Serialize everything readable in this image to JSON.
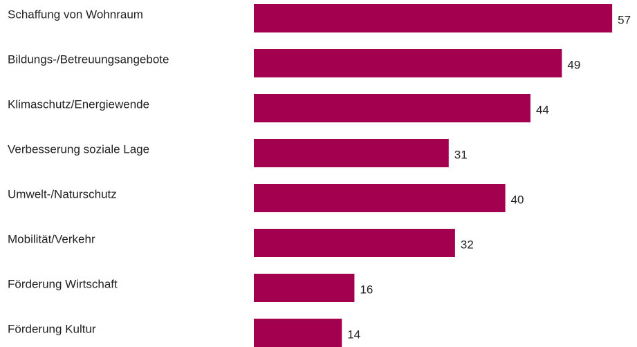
{
  "chart_data": {
    "type": "bar",
    "orientation": "horizontal",
    "categories": [
      "Schaffung von Wohnraum",
      "Bildungs-/Betreuungsangebote",
      "Klimaschutz/Energiewende",
      "Verbesserung soziale Lage",
      "Umwelt-/Naturschutz",
      "Mobilität/Verkehr",
      "Förderung Wirtschaft",
      "Förderung Kultur"
    ],
    "values": [
      57,
      49,
      44,
      31,
      40,
      32,
      16,
      14
    ],
    "color": "#a3004f"
  }
}
